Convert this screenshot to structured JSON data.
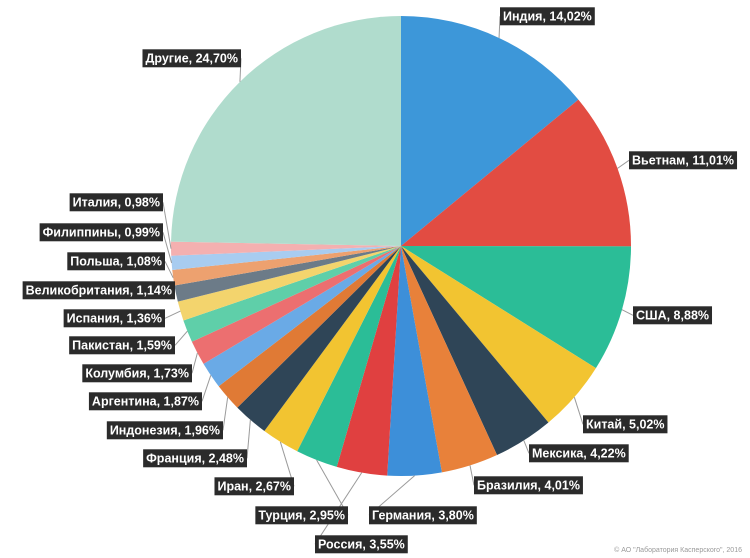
{
  "chart_data": {
    "type": "pie",
    "title": "",
    "slices": [
      {
        "label": "Индия",
        "value": 14.02,
        "display": "Индия, 14,02%",
        "color": "#3d97d9"
      },
      {
        "label": "Вьетнам",
        "value": 11.01,
        "display": "Вьетнам, 11,01%",
        "color": "#e24c42"
      },
      {
        "label": "США",
        "value": 8.88,
        "display": "США, 8,88%",
        "color": "#2bbd97"
      },
      {
        "label": "Китай",
        "value": 5.02,
        "display": "Китай, 5,02%",
        "color": "#f2c431"
      },
      {
        "label": "Мексика",
        "value": 4.22,
        "display": "Мексика, 4,22%",
        "color": "#2f4557"
      },
      {
        "label": "Бразилия",
        "value": 4.01,
        "display": "Бразилия, 4,01%",
        "color": "#e8813a"
      },
      {
        "label": "Германия",
        "value": 3.8,
        "display": "Германия, 3,80%",
        "color": "#3d8fd9"
      },
      {
        "label": "Россия",
        "value": 3.55,
        "display": "Россия, 3,55%",
        "color": "#e04040"
      },
      {
        "label": "Турция",
        "value": 2.95,
        "display": "Турция, 2,95%",
        "color": "#2bbd97"
      },
      {
        "label": "Иран",
        "value": 2.67,
        "display": "Иран, 2,67%",
        "color": "#f2c431"
      },
      {
        "label": "Франция",
        "value": 2.48,
        "display": "Франция, 2,48%",
        "color": "#2f4557"
      },
      {
        "label": "Индонезия",
        "value": 1.96,
        "display": "Индонезия, 1,96%",
        "color": "#e07a35"
      },
      {
        "label": "Аргентина",
        "value": 1.87,
        "display": "Аргентина, 1,87%",
        "color": "#6aaae6"
      },
      {
        "label": "Колумбия",
        "value": 1.73,
        "display": "Колумбия, 1,73%",
        "color": "#ec6f70"
      },
      {
        "label": "Пакистан",
        "value": 1.59,
        "display": "Пакистан, 1,59%",
        "color": "#5fcfa9"
      },
      {
        "label": "Испания",
        "value": 1.36,
        "display": "Испания, 1,36%",
        "color": "#f3d46d"
      },
      {
        "label": "Великобритания",
        "value": 1.14,
        "display": "Великобритания, 1,14%",
        "color": "#6c7b88"
      },
      {
        "label": "Польша",
        "value": 1.08,
        "display": "Польша, 1,08%",
        "color": "#eda16f"
      },
      {
        "label": "Филиппины",
        "value": 0.99,
        "display": "Филиппины, 0,99%",
        "color": "#a8ccf0"
      },
      {
        "label": "Италия",
        "value": 0.98,
        "display": "Италия, 0,98%",
        "color": "#f4b0b0"
      },
      {
        "label": "Другие",
        "value": 24.7,
        "display": "Другие, 24,70%",
        "color": "#b0dccd"
      }
    ]
  },
  "footer": {
    "copyright": "© АО \"Лаборатория Касперского\", 2016"
  }
}
